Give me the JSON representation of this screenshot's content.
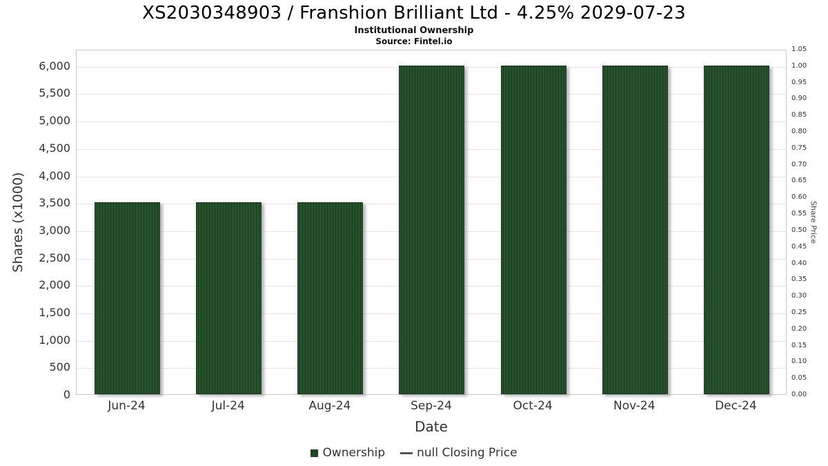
{
  "header": {
    "title": "XS2030348903 / Franshion Brilliant Ltd - 4.25% 2029-07-23",
    "subtitle": "Institutional Ownership",
    "source": "Source: Fintel.io"
  },
  "chart_data": {
    "type": "bar",
    "title": "XS2030348903 / Franshion Brilliant Ltd - 4.25% 2029-07-23",
    "subtitle": "Institutional Ownership",
    "source": "Source: Fintel.io",
    "categories": [
      "Jun-24",
      "Jul-24",
      "Aug-24",
      "Sep-24",
      "Oct-24",
      "Nov-24",
      "Dec-24"
    ],
    "series": [
      {
        "name": "Ownership",
        "values": [
          3500,
          3500,
          3500,
          6000,
          6000,
          6000,
          6000
        ]
      }
    ],
    "xlabel": "Date",
    "ylabel_left": "Shares (x1000)",
    "ylabel_right": "Share Price",
    "ylim_left": [
      0,
      6300
    ],
    "ylim_right": [
      0,
      1.05
    ],
    "yticks_left": {
      "values": [
        0,
        500,
        1000,
        1500,
        2000,
        2500,
        3000,
        3500,
        4000,
        4500,
        5000,
        5500,
        6000
      ],
      "labels": [
        "0",
        "500",
        "1,000",
        "1,500",
        "2,000",
        "2,500",
        "3,000",
        "3,500",
        "4,000",
        "4,500",
        "5,000",
        "5,500",
        "6,000"
      ]
    },
    "yticks_right": {
      "values": [
        0,
        0.05,
        0.1,
        0.15,
        0.2,
        0.25,
        0.3,
        0.35,
        0.4,
        0.45,
        0.5,
        0.55,
        0.6,
        0.65,
        0.7,
        0.75,
        0.8,
        0.85,
        0.9,
        0.95,
        1.0,
        1.05
      ],
      "labels": [
        "0.00",
        "0.05",
        "0.10",
        "0.15",
        "0.20",
        "0.25",
        "0.30",
        "0.35",
        "0.40",
        "0.45",
        "0.50",
        "0.55",
        "0.60",
        "0.65",
        "0.70",
        "0.75",
        "0.80",
        "0.85",
        "0.90",
        "0.95",
        "1.00",
        "1.05"
      ]
    },
    "grid": true,
    "legend_position": "bottom",
    "bar_color": "#1d4823",
    "legend": [
      {
        "label": "Ownership",
        "marker": "square",
        "color": "#1d4823"
      },
      {
        "label": "null Closing Price",
        "marker": "line",
        "color": "#555555"
      }
    ]
  }
}
